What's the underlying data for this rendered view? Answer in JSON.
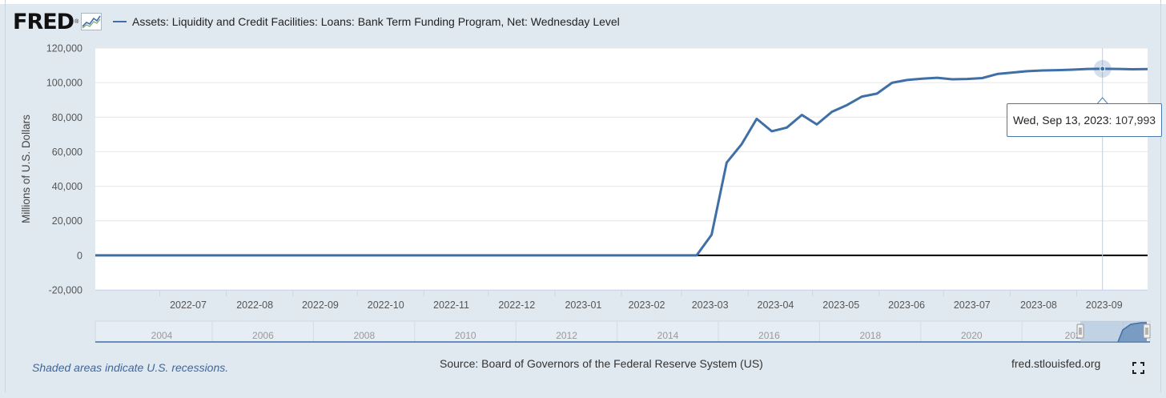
{
  "logo": {
    "text": "FRED",
    "reg": "®",
    "icon": "fred-chart-icon"
  },
  "legend": {
    "label": "Assets: Liquidity and Credit Facilities: Loans: Bank Term Funding Program, Net: Wednesday Level",
    "color": "#3f6fa6"
  },
  "tooltip": {
    "date": "Wed, Sep 13, 2023:",
    "value": "107,993"
  },
  "footer": {
    "recession_note": "Shaded areas indicate U.S. recessions.",
    "source": "Source: Board of Governors of the Federal Reserve System (US)",
    "site": "fred.stlouisfed.org",
    "fullscreen_icon": "fullscreen-icon"
  },
  "navigator": {
    "labels": [
      "2004",
      "2006",
      "2008",
      "2010",
      "2012",
      "2014",
      "2016",
      "2018",
      "2020",
      "202"
    ]
  },
  "chart_data": {
    "type": "line",
    "ylabel": "Millions of U.S. Dollars",
    "ylim": [
      -20000,
      120000
    ],
    "yticks": [
      "120,000",
      "100,000",
      "80,000",
      "60,000",
      "40,000",
      "20,000",
      "0",
      "-20,000"
    ],
    "xlim": [
      "2022-06-01",
      "2023-10-04"
    ],
    "xticks": [
      "2022-07",
      "2022-08",
      "2022-09",
      "2022-10",
      "2022-11",
      "2022-12",
      "2023-01",
      "2023-02",
      "2023-03",
      "2023-04",
      "2023-05",
      "2023-06",
      "2023-07",
      "2023-08",
      "2023-09"
    ],
    "grid": true,
    "legend": "top-left",
    "series": [
      {
        "name": "Assets: Liquidity and Credit Facilities: Loans: Bank Term Funding Program, Net: Wednesday Level",
        "color": "#3f6fa6",
        "points": [
          [
            "2022-06-01",
            0
          ],
          [
            "2023-03-08",
            0
          ],
          [
            "2023-03-15",
            11943
          ],
          [
            "2023-03-22",
            53669
          ],
          [
            "2023-03-29",
            64403
          ],
          [
            "2023-04-05",
            79021
          ],
          [
            "2023-04-12",
            71837
          ],
          [
            "2023-04-19",
            73976
          ],
          [
            "2023-04-26",
            81290
          ],
          [
            "2023-05-03",
            75774
          ],
          [
            "2023-05-10",
            83100
          ],
          [
            "2023-05-17",
            87000
          ],
          [
            "2023-05-24",
            91900
          ],
          [
            "2023-05-31",
            93600
          ],
          [
            "2023-06-07",
            99900
          ],
          [
            "2023-06-14",
            101500
          ],
          [
            "2023-06-21",
            102300
          ],
          [
            "2023-06-28",
            102800
          ],
          [
            "2023-07-05",
            101900
          ],
          [
            "2023-07-12",
            102100
          ],
          [
            "2023-07-19",
            102600
          ],
          [
            "2023-07-26",
            105000
          ],
          [
            "2023-08-02",
            105800
          ],
          [
            "2023-08-09",
            106600
          ],
          [
            "2023-08-16",
            107000
          ],
          [
            "2023-08-23",
            107200
          ],
          [
            "2023-08-30",
            107500
          ],
          [
            "2023-09-06",
            107900
          ],
          [
            "2023-09-13",
            107993
          ],
          [
            "2023-09-20",
            107900
          ],
          [
            "2023-09-27",
            107700
          ],
          [
            "2023-10-04",
            107800
          ]
        ]
      }
    ],
    "highlight": {
      "x": "2023-09-13",
      "y": 107993
    }
  }
}
